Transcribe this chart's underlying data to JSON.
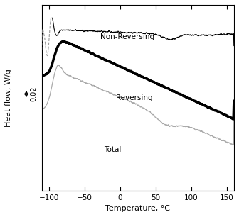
{
  "xlim": [
    -110,
    160
  ],
  "ylim": [
    -0.22,
    0.12
  ],
  "xlabel": "Temperature, °C",
  "ylabel": "Heat flow, W/g",
  "xticks": [
    -100,
    -50,
    0,
    50,
    100,
    150
  ],
  "label_non_reversing": "Non-Reversing",
  "label_reversing": "Reversing",
  "label_total": "Total",
  "scale_bar_value": "0.02",
  "bg_color": "#ffffff",
  "non_rev_color": "#000000",
  "rev_color": "#000000",
  "total_color": "#aaaaaa",
  "dashed_color": "#999999",
  "scale_bar_span": 0.02
}
